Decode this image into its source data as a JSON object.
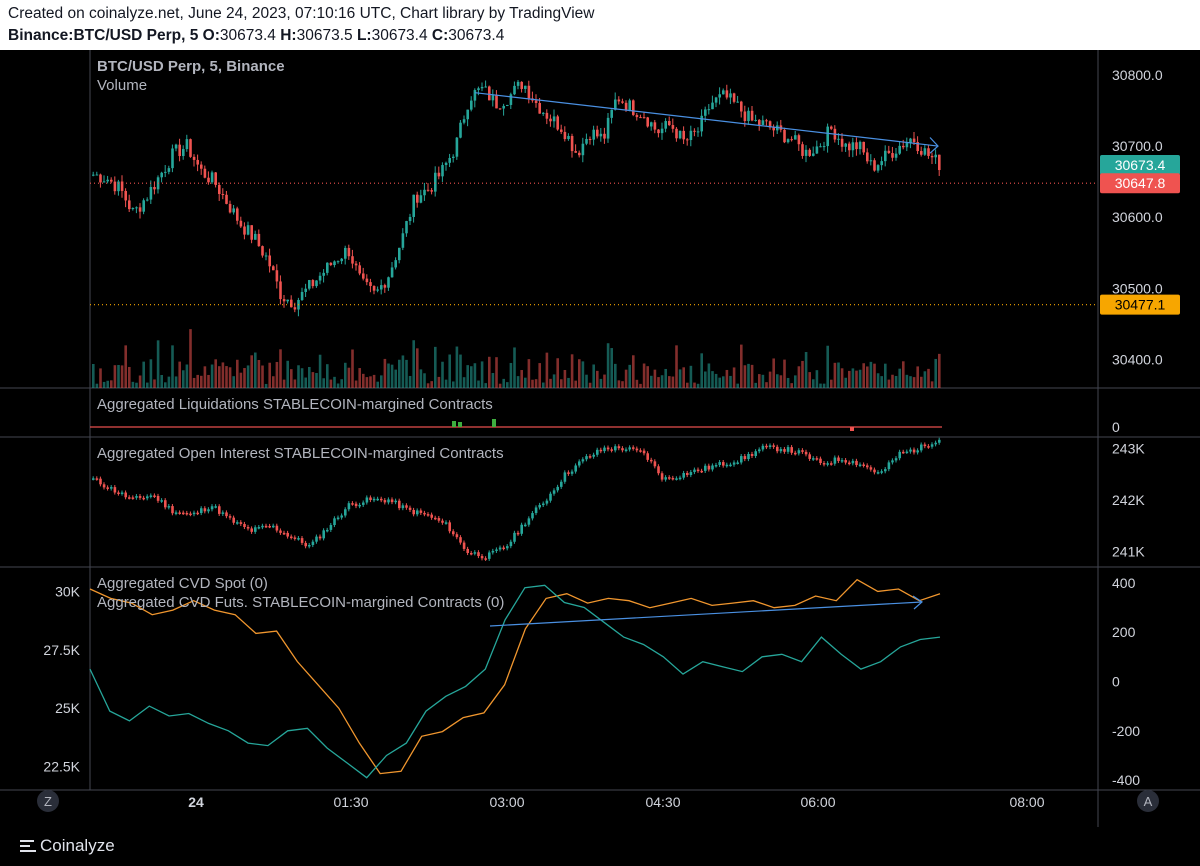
{
  "header": {
    "created": "Created on coinalyze.net, June 24, 2023, 07:10:16 UTC, Chart library by TradingView",
    "symbol": "Binance:BTC/USD Perp, 5",
    "o_label": "O:",
    "o_value": "30673.4",
    "h_label": "H:",
    "h_value": "30673.5",
    "l_label": "L:",
    "l_value": "30673.4",
    "c_label": "C:",
    "c_value": "30673.4"
  },
  "colors": {
    "up": "#26a69a",
    "down": "#ef5350",
    "orange": "#f7a600",
    "blue": "#2962ff",
    "cvd_orange": "#f0962e",
    "cvd_green": "#26a69a",
    "grid": "#2a2e39",
    "axis_text": "#d1d4dc"
  },
  "footer": {
    "brand": "Coinalyze",
    "z_btn": "Z",
    "a_btn": "A"
  },
  "chart_data": [
    {
      "type": "candlestick",
      "title": "BTC/USD Perp, 5, Binance",
      "subtitle": "Volume",
      "ylim": [
        30360,
        30835
      ],
      "y_ticks": [
        "30800.0",
        "30700.0",
        "30600.0",
        "30500.0",
        "30400.0"
      ],
      "y_tick_values": [
        30800,
        30700,
        30600,
        30500,
        30400
      ],
      "price_labels": [
        {
          "text": "30673.4",
          "value": 30673.4,
          "color": "#26a69a"
        },
        {
          "text": "30647.8",
          "value": 30647.8,
          "color": "#ef5350"
        },
        {
          "text": "30477.1",
          "value": 30477.1,
          "color": "#f7a600"
        }
      ],
      "x_ticks": [
        "24",
        "01:30",
        "03:00",
        "04:30",
        "06:00",
        "08:00"
      ],
      "close_path": [
        30660,
        30655,
        30640,
        30605,
        30630,
        30660,
        30690,
        30700,
        30665,
        30650,
        30620,
        30590,
        30570,
        30540,
        30490,
        30480,
        30500,
        30520,
        30540,
        30555,
        30505,
        30490,
        30520,
        30570,
        30630,
        30640,
        30665,
        30700,
        30770,
        30780,
        30760,
        30770,
        30790,
        30760,
        30740,
        30725,
        30690,
        30720,
        30710,
        30770,
        30755,
        30745,
        30720,
        30730,
        30705,
        30720,
        30760,
        30770,
        30755,
        30735,
        30730,
        30720,
        30710,
        30690,
        30700,
        30725,
        30700,
        30700,
        30670,
        30685,
        30700,
        30712,
        30690,
        30675
      ]
    },
    {
      "type": "bar",
      "title": "Aggregated Liquidations STABLECOIN-margined Contracts",
      "y_ticks": [
        "0"
      ],
      "y_tick_values": [
        0
      ]
    },
    {
      "type": "candlestick",
      "title": "Aggregated Open Interest STABLECOIN-margined Contracts",
      "ylim": [
        240700,
        243200
      ],
      "y_ticks": [
        "243K",
        "242K",
        "241K"
      ],
      "y_tick_values": [
        243000,
        242000,
        241000
      ],
      "close_path": [
        242400,
        242200,
        242000,
        242100,
        241800,
        241700,
        241900,
        241600,
        241400,
        241500,
        241300,
        241100,
        241500,
        241900,
        242000,
        242000,
        241800,
        241700,
        241500,
        241000,
        240900,
        241100,
        241600,
        242000,
        242500,
        242800,
        243000,
        243000,
        242900,
        242400,
        242500,
        242600,
        242700,
        242800,
        243000,
        243000,
        242900,
        242700,
        242800,
        242700,
        242500,
        242900,
        243000,
        243200
      ]
    },
    {
      "type": "line",
      "title_spot": "Aggregated CVD Spot (0)",
      "title_futs": "Aggregated CVD Futs. STABLECOIN-margined Contracts (0)",
      "left_ticks": [
        "30K",
        "27.5K",
        "25K",
        "22.5K"
      ],
      "left_tick_values": [
        30000,
        27500,
        25000,
        22500
      ],
      "left_ylim": [
        21500,
        31000
      ],
      "right_ticks": [
        "400",
        "200",
        "0",
        "-200",
        "-400"
      ],
      "right_tick_values": [
        400,
        200,
        0,
        -200,
        -400
      ],
      "right_ylim": [
        -440,
        460
      ],
      "series": [
        {
          "name": "Aggregated CVD Futs. STABLECOIN-margined Contracts",
          "axis": "left",
          "color": "#f0962e",
          "values": [
            30100,
            29700,
            29500,
            29000,
            29200,
            29600,
            29200,
            29000,
            28200,
            28300,
            27000,
            26000,
            25000,
            23500,
            22200,
            22300,
            23800,
            24000,
            24600,
            24800,
            26000,
            28400,
            29700,
            29900,
            29500,
            29700,
            29600,
            29300,
            29500,
            29700,
            29400,
            29500,
            29600,
            29300,
            29400,
            29800,
            29600,
            30500,
            30000,
            30100,
            29600,
            29900
          ]
        },
        {
          "name": "Aggregated CVD Spot",
          "axis": "right",
          "color": "#26a69a",
          "values": [
            50,
            -120,
            -160,
            -100,
            -140,
            -130,
            -170,
            -200,
            -250,
            -260,
            -200,
            -190,
            -270,
            -330,
            -390,
            -300,
            -250,
            -120,
            -60,
            -20,
            50,
            250,
            380,
            390,
            320,
            300,
            240,
            180,
            150,
            100,
            30,
            80,
            60,
            40,
            100,
            110,
            80,
            180,
            110,
            50,
            80,
            140,
            170,
            180
          ]
        }
      ]
    }
  ]
}
